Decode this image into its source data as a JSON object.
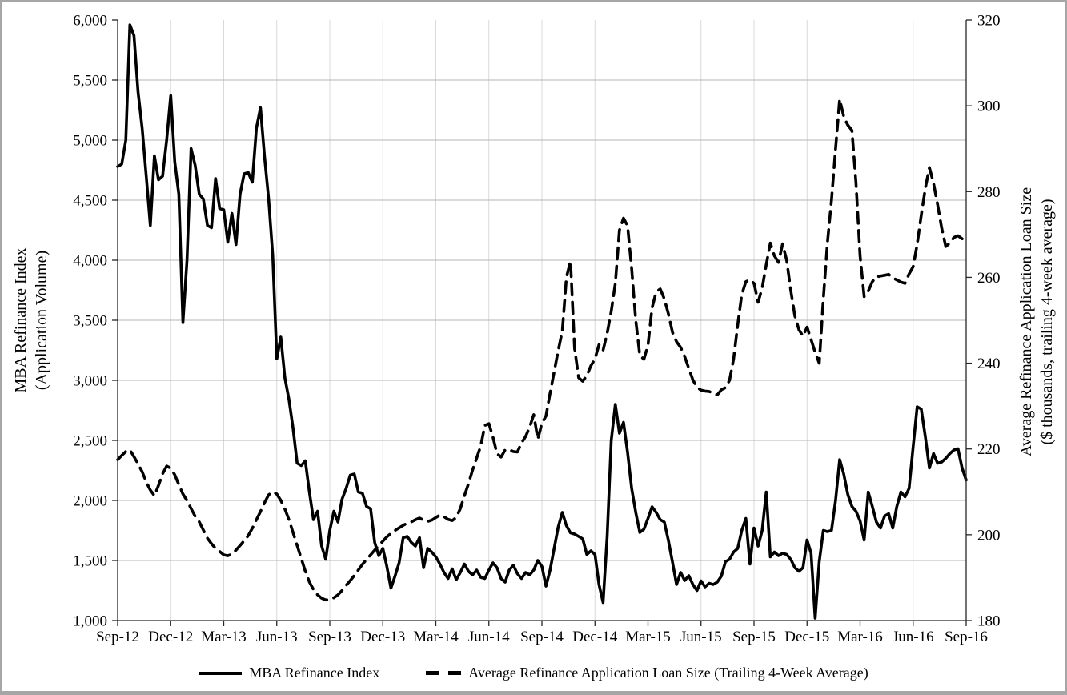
{
  "chart_data": {
    "type": "line",
    "title": "",
    "x_axis": {
      "tick_labels": [
        "Sep-12",
        "Dec-12",
        "Mar-13",
        "Jun-13",
        "Sep-13",
        "Dec-13",
        "Mar-14",
        "Jun-14",
        "Sep-14",
        "Dec-14",
        "Mar-15",
        "Jun-15",
        "Sep-15",
        "Dec-15",
        "Mar-16",
        "Jun-16",
        "Sep-16"
      ],
      "points_per_tick_interval": 13,
      "total_points": 209,
      "unit": "weekly observations"
    },
    "left_axis": {
      "title_line1": "MBA Refinance Index",
      "title_line2": "(Application Volume)",
      "min": 1000,
      "max": 6000,
      "tick_interval": 500,
      "tick_labels": [
        "1,000",
        "1,500",
        "2,000",
        "2,500",
        "3,000",
        "3,500",
        "4,000",
        "4,500",
        "5,000",
        "5,500",
        "6,000"
      ]
    },
    "right_axis": {
      "title_line1": "Average Refinance Application Loan Size",
      "title_line2": "($ thousands, trailing 4-week average)",
      "min": 180,
      "max": 320,
      "tick_interval": 20,
      "tick_labels": [
        "180",
        "200",
        "220",
        "240",
        "260",
        "280",
        "300",
        "320"
      ]
    },
    "grid": {
      "horizontal": true,
      "vertical": true
    },
    "legend_position": "bottom",
    "series": [
      {
        "name": "MBA Refinance Index",
        "axis": "left",
        "style": "solid",
        "color": "#000000",
        "values": [
          4780,
          4800,
          5000,
          5960,
          5870,
          5400,
          5100,
          4700,
          4290,
          4870,
          4670,
          4700,
          5000,
          5370,
          4820,
          4550,
          3480,
          4000,
          4930,
          4790,
          4550,
          4510,
          4290,
          4270,
          4680,
          4430,
          4420,
          4150,
          4390,
          4130,
          4550,
          4720,
          4730,
          4650,
          5100,
          5270,
          4860,
          4510,
          4040,
          3180,
          3360,
          3020,
          2840,
          2600,
          2310,
          2290,
          2330,
          2070,
          1840,
          1910,
          1620,
          1510,
          1750,
          1910,
          1820,
          2010,
          2100,
          2210,
          2220,
          2070,
          2060,
          1950,
          1930,
          1650,
          1540,
          1600,
          1450,
          1270,
          1370,
          1480,
          1690,
          1700,
          1650,
          1620,
          1690,
          1440,
          1600,
          1570,
          1530,
          1470,
          1400,
          1350,
          1430,
          1340,
          1400,
          1470,
          1410,
          1380,
          1420,
          1360,
          1350,
          1420,
          1480,
          1440,
          1350,
          1320,
          1420,
          1460,
          1390,
          1350,
          1400,
          1380,
          1420,
          1500,
          1450,
          1287,
          1420,
          1600,
          1780,
          1900,
          1790,
          1730,
          1720,
          1700,
          1680,
          1550,
          1580,
          1550,
          1300,
          1150,
          1700,
          2500,
          2800,
          2560,
          2650,
          2400,
          2100,
          1900,
          1733,
          1760,
          1850,
          1947,
          1900,
          1840,
          1820,
          1667,
          1487,
          1300,
          1400,
          1333,
          1373,
          1300,
          1250,
          1330,
          1280,
          1310,
          1300,
          1320,
          1370,
          1490,
          1510,
          1570,
          1600,
          1750,
          1850,
          1470,
          1770,
          1620,
          1750,
          2070,
          1530,
          1570,
          1540,
          1560,
          1550,
          1510,
          1440,
          1410,
          1440,
          1670,
          1560,
          1020,
          1490,
          1750,
          1740,
          1750,
          2000,
          2340,
          2220,
          2050,
          1950,
          1910,
          1830,
          1670,
          2070,
          1950,
          1820,
          1770,
          1870,
          1890,
          1770,
          1950,
          2070,
          2030,
          2100,
          2450,
          2780,
          2760,
          2530,
          2270,
          2390,
          2310,
          2320,
          2350,
          2390,
          2420,
          2430,
          2270,
          2170
        ]
      },
      {
        "name": "Average Refinance Application Loan Size (Trailing 4-Week Average)",
        "axis": "right",
        "style": "dashed",
        "color": "#000000",
        "values": [
          217.5,
          218.5,
          219.4,
          219.8,
          218.2,
          216.5,
          214.7,
          212.3,
          210.4,
          209.1,
          211.5,
          214.2,
          216.0,
          215.5,
          214.0,
          211.7,
          209.5,
          208.0,
          206.1,
          204.3,
          203.0,
          201.1,
          199.2,
          197.9,
          196.8,
          196.1,
          195.3,
          195.1,
          195.5,
          196.4,
          197.5,
          198.6,
          199.8,
          201.5,
          203.5,
          205.4,
          207.5,
          209.3,
          210.0,
          209.5,
          208.0,
          206.0,
          203.5,
          200.5,
          197.5,
          194.5,
          191.5,
          189.0,
          187.2,
          186.0,
          185.2,
          184.8,
          184.9,
          185.3,
          186.0,
          187.0,
          188.2,
          189.3,
          190.5,
          191.8,
          193.1,
          194.2,
          195.3,
          196.4,
          197.5,
          198.5,
          199.5,
          200.3,
          201.0,
          201.6,
          202.2,
          202.7,
          203.0,
          203.5,
          203.9,
          203.4,
          203.1,
          203.4,
          204.0,
          204.6,
          204.2,
          203.6,
          203.3,
          204.0,
          206.1,
          209.1,
          211.9,
          215.1,
          217.9,
          220.7,
          225.5,
          225.9,
          222.8,
          218.9,
          218.1,
          219.8,
          219.8,
          219.4,
          219.3,
          221.4,
          222.9,
          225.1,
          228.0,
          222.3,
          226.0,
          227.7,
          233.0,
          238.0,
          243.0,
          247.5,
          260.0,
          263.8,
          243.5,
          236.6,
          235.8,
          237.1,
          239.4,
          241.0,
          244.3,
          243.0,
          247.0,
          252.1,
          258.6,
          271.0,
          273.8,
          272.0,
          262.0,
          250.0,
          241.8,
          240.9,
          244.2,
          252.9,
          256.6,
          257.3,
          255.0,
          251.5,
          247.2,
          245.0,
          243.7,
          241.5,
          238.8,
          236.1,
          234.4,
          233.7,
          233.5,
          233.4,
          233.0,
          232.6,
          233.8,
          234.3,
          236.0,
          241.0,
          248.9,
          256.0,
          259.0,
          259.4,
          258.6,
          254.2,
          257.5,
          263.0,
          268.0,
          265.0,
          263.5,
          267.8,
          264.0,
          257.0,
          251.0,
          247.8,
          246.3,
          248.4,
          245.5,
          242.5,
          240.0,
          255.0,
          268.0,
          278.0,
          290.0,
          301.5,
          297.5,
          295.5,
          294.3,
          282.0,
          265.0,
          255.5,
          256.8,
          259.0,
          260.1,
          260.3,
          260.5,
          260.7,
          259.9,
          259.4,
          258.9,
          258.6,
          260.8,
          262.5,
          267.7,
          274.5,
          280.8,
          285.6,
          282.0,
          277.0,
          271.5,
          267.2,
          268.0,
          269.3,
          269.7,
          269.0,
          268.6
        ]
      }
    ],
    "legend": {
      "entries": [
        {
          "label": "MBA Refinance Index",
          "style": "solid"
        },
        {
          "label": "Average Refinance Application Loan Size (Trailing 4-Week Average)",
          "style": "dashed"
        }
      ]
    },
    "colors": {
      "line": "#000000",
      "gridline_horizontal": "#b5b5b5",
      "gridline_vertical": "#d9d9d9",
      "axis": "#262626",
      "frame_border": "#a6a6a6"
    }
  }
}
